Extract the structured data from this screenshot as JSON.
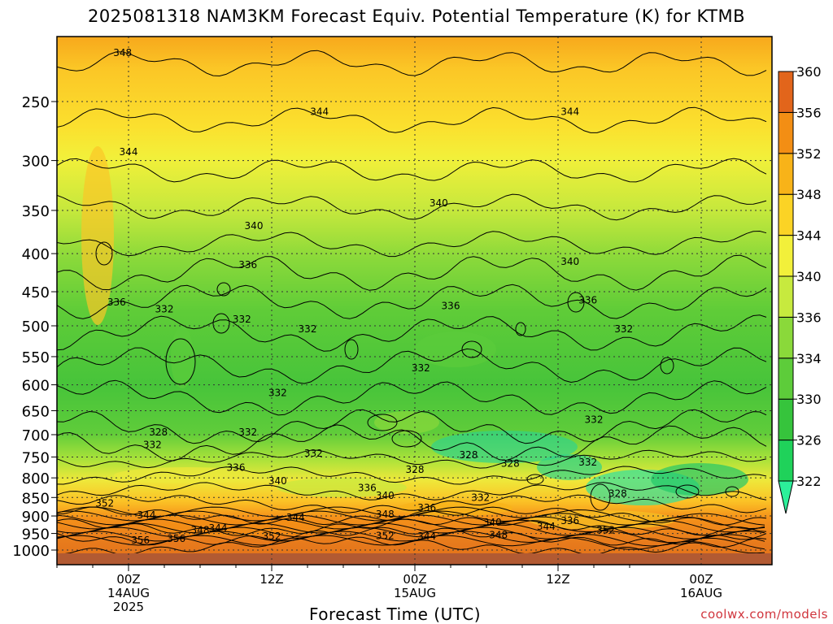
{
  "chart_data": {
    "type": "heatmap",
    "title": "2025081318 NAM3KM Forecast Equiv. Potential Temperature (K) for KTMB",
    "xlabel": "Forecast Time (UTC)",
    "ylabel": "",
    "y_scale": "log-pressure",
    "y_ticks": [
      250,
      300,
      350,
      400,
      450,
      500,
      550,
      600,
      650,
      700,
      750,
      800,
      850,
      900,
      950,
      1000
    ],
    "ylim": [
      1000,
      200
    ],
    "x_ticks": [
      {
        "line1": "00Z",
        "line2": "14AUG",
        "line3": "2025"
      },
      {
        "line1": "12Z",
        "line2": "",
        "line3": ""
      },
      {
        "line1": "00Z",
        "line2": "15AUG",
        "line3": ""
      },
      {
        "line1": "12Z",
        "line2": "",
        "line3": ""
      },
      {
        "line1": "00Z",
        "line2": "16AUG",
        "line3": ""
      }
    ],
    "colorbar": {
      "labels": [
        322,
        326,
        330,
        334,
        336,
        340,
        344,
        348,
        352,
        356,
        360
      ],
      "colors": [
        "#2cf09a",
        "#1fd25a",
        "#36c43c",
        "#5dcc3a",
        "#8ad93a",
        "#c7ea3e",
        "#f2f03a",
        "#fbd325",
        "#f8b318",
        "#f38e14",
        "#e2651b",
        "#b84a1c"
      ]
    },
    "contour_labels": [
      {
        "text": "348",
        "t": -0.5,
        "p": 215
      },
      {
        "text": "344",
        "t": 16,
        "p": 258
      },
      {
        "text": "344",
        "t": 37,
        "p": 258
      },
      {
        "text": "344",
        "t": 0,
        "p": 292
      },
      {
        "text": "340",
        "t": 10.5,
        "p": 367
      },
      {
        "text": "340",
        "t": 26,
        "p": 342
      },
      {
        "text": "340",
        "t": 37,
        "p": 410
      },
      {
        "text": "336",
        "t": 10,
        "p": 414
      },
      {
        "text": "336",
        "t": 27,
        "p": 470
      },
      {
        "text": "336",
        "t": 38.5,
        "p": 462
      },
      {
        "text": "336",
        "t": -1,
        "p": 465
      },
      {
        "text": "332",
        "t": 3,
        "p": 475
      },
      {
        "text": "332",
        "t": 9.5,
        "p": 490
      },
      {
        "text": "332",
        "t": 15,
        "p": 505
      },
      {
        "text": "332",
        "t": 24.5,
        "p": 570
      },
      {
        "text": "332",
        "t": 41.5,
        "p": 505
      },
      {
        "text": "332",
        "t": 12.5,
        "p": 615
      },
      {
        "text": "332",
        "t": 10,
        "p": 695
      },
      {
        "text": "332",
        "t": 39,
        "p": 668
      },
      {
        "text": "332",
        "t": 38.5,
        "p": 762
      },
      {
        "text": "332",
        "t": 15.5,
        "p": 742
      },
      {
        "text": "328",
        "t": 2.5,
        "p": 695
      },
      {
        "text": "328",
        "t": 28.5,
        "p": 745
      },
      {
        "text": "328",
        "t": 32,
        "p": 765
      },
      {
        "text": "328",
        "t": 24,
        "p": 780
      },
      {
        "text": "328",
        "t": 41,
        "p": 840
      },
      {
        "text": "332",
        "t": 2,
        "p": 722
      },
      {
        "text": "336",
        "t": 9,
        "p": 775
      },
      {
        "text": "340",
        "t": 12.5,
        "p": 808
      },
      {
        "text": "336",
        "t": 20,
        "p": 825
      },
      {
        "text": "340",
        "t": 21.5,
        "p": 845
      },
      {
        "text": "336",
        "t": 25,
        "p": 878
      },
      {
        "text": "332",
        "t": 29.5,
        "p": 850
      },
      {
        "text": "340",
        "t": 30.5,
        "p": 918
      },
      {
        "text": "336",
        "t": 37,
        "p": 914
      },
      {
        "text": "344",
        "t": 1.5,
        "p": 898
      },
      {
        "text": "344",
        "t": 14,
        "p": 904
      },
      {
        "text": "344",
        "t": 7.5,
        "p": 935
      },
      {
        "text": "344",
        "t": 35,
        "p": 930
      },
      {
        "text": "344",
        "t": 25,
        "p": 958
      },
      {
        "text": "348",
        "t": 21.5,
        "p": 895
      },
      {
        "text": "348",
        "t": 6,
        "p": 940
      },
      {
        "text": "348",
        "t": 31,
        "p": 955
      },
      {
        "text": "352",
        "t": 12,
        "p": 958
      },
      {
        "text": "352",
        "t": 21.5,
        "p": 957
      },
      {
        "text": "352",
        "t": 40,
        "p": 940
      },
      {
        "text": "352",
        "t": -2,
        "p": 865
      },
      {
        "text": "356",
        "t": 1,
        "p": 970
      },
      {
        "text": "356",
        "t": 4,
        "p": 966
      }
    ]
  },
  "credit": "coolwx.com/models"
}
